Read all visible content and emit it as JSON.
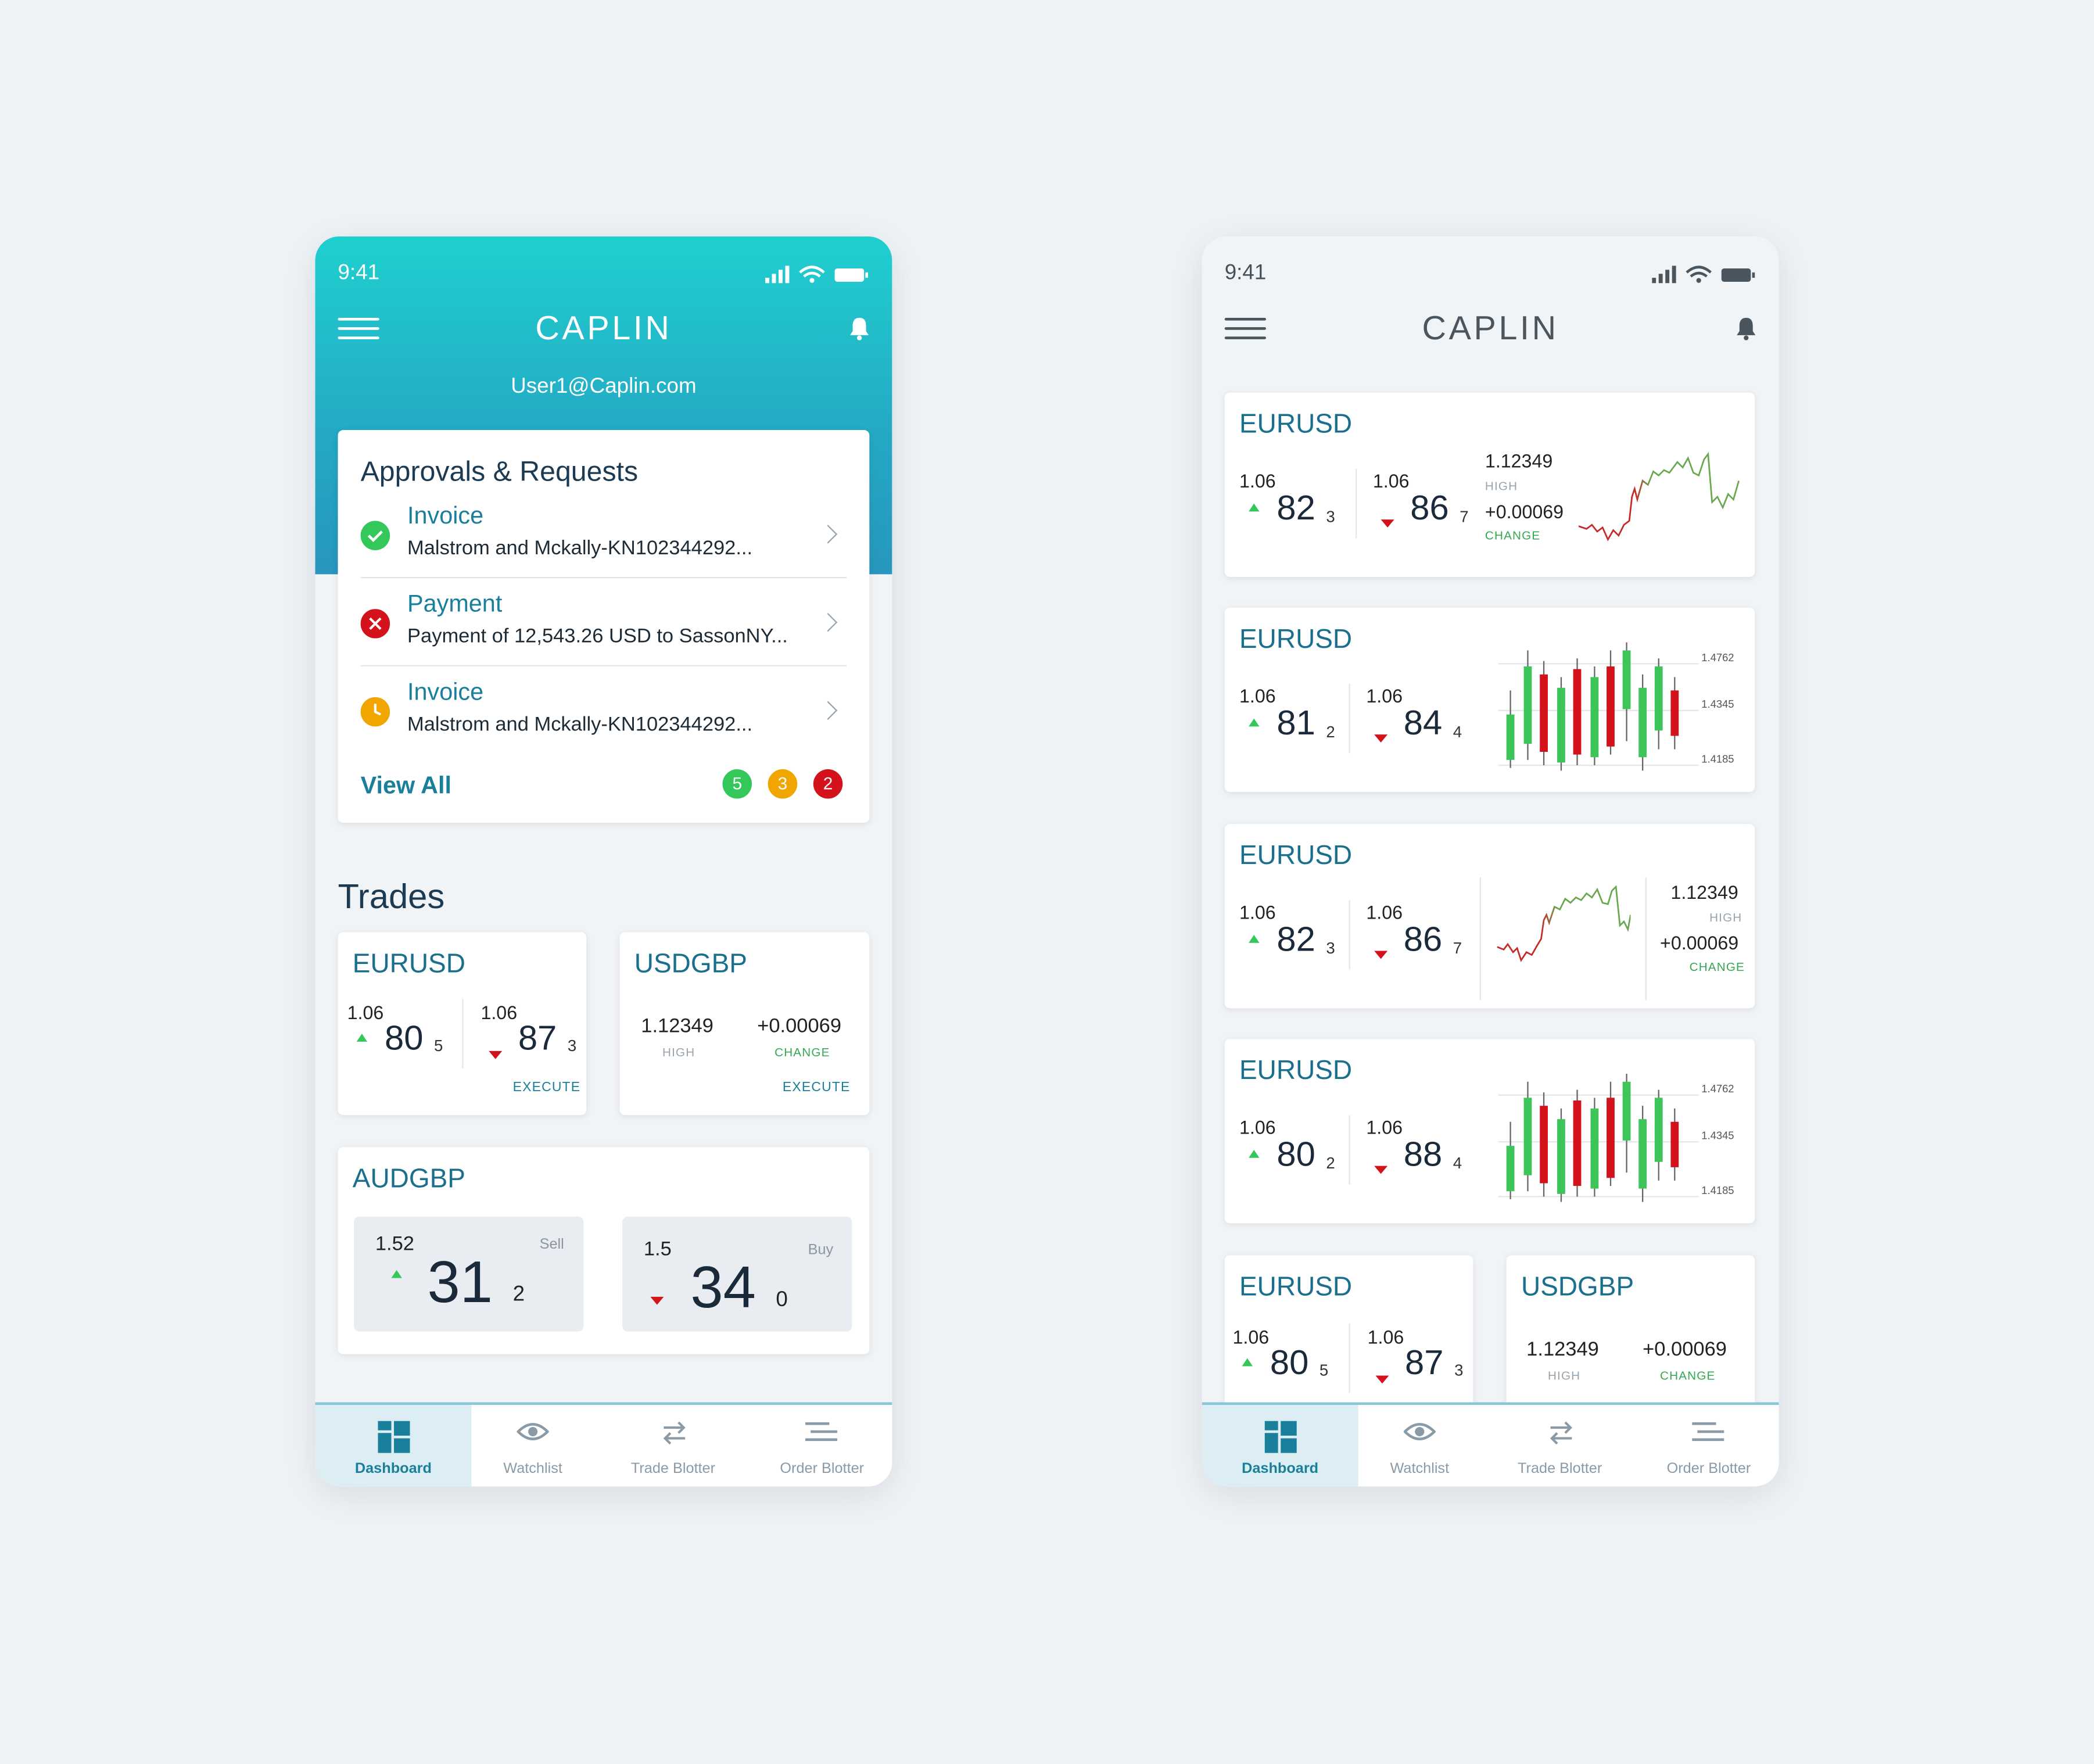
{
  "phone1": {
    "status_time": "9:41",
    "logo": "CAPLIN",
    "user_email": "User1@Caplin.com",
    "approvals": {
      "title": "Approvals & Requests",
      "items": [
        {
          "type": "Invoice",
          "desc": "Malstrom and Mckally-KN102344292...",
          "status": "approved"
        },
        {
          "type": "Payment",
          "desc": "Payment of 12,543.26 USD to SassonNY...",
          "status": "rejected"
        },
        {
          "type": "Invoice",
          "desc": "Malstrom and Mckally-KN102344292...",
          "status": "pending"
        }
      ],
      "view_all": "View All",
      "badges": [
        "5",
        "3",
        "2"
      ]
    },
    "trades_title": "Trades",
    "eurusd": {
      "pair": "EURUSD",
      "bid_small": "1.06",
      "bid_big": "80",
      "bid_pip": "5",
      "ask_small": "1.06",
      "ask_big": "87",
      "ask_pip": "3",
      "execute": "EXECUTE"
    },
    "usdgbp": {
      "pair": "USDGBP",
      "high": "1.12349",
      "high_label": "HIGH",
      "change": "+0.00069",
      "change_label": "CHANGE",
      "execute": "EXECUTE"
    },
    "audgbp": {
      "pair": "AUDGBP",
      "sell_small": "1.52",
      "sell_label": "Sell",
      "sell_big": "31",
      "sell_pip": "2",
      "buy_small": "1.5",
      "buy_label": "Buy",
      "buy_big": "34",
      "buy_pip": "0"
    }
  },
  "phone2": {
    "status_time": "9:41",
    "logo": "CAPLIN",
    "cards": [
      {
        "pair": "EURUSD",
        "bid_small": "1.06",
        "bid_big": "82",
        "bid_pip": "3",
        "ask_small": "1.06",
        "ask_big": "86",
        "ask_pip": "7",
        "high": "1.12349",
        "high_label": "HIGH",
        "change": "+0.00069",
        "change_label": "CHANGE"
      },
      {
        "pair": "EURUSD",
        "bid_small": "1.06",
        "bid_big": "81",
        "bid_pip": "2",
        "ask_small": "1.06",
        "ask_big": "84",
        "ask_pip": "4",
        "axis": [
          "1.4762",
          "1.4345",
          "1.4185"
        ]
      },
      {
        "pair": "EURUSD",
        "bid_small": "1.06",
        "bid_big": "82",
        "bid_pip": "3",
        "ask_small": "1.06",
        "ask_big": "86",
        "ask_pip": "7",
        "high": "1.12349",
        "high_label": "HIGH",
        "change": "+0.00069",
        "change_label": "CHANGE"
      },
      {
        "pair": "EURUSD",
        "bid_small": "1.06",
        "bid_big": "80",
        "bid_pip": "2",
        "ask_small": "1.06",
        "ask_big": "88",
        "ask_pip": "4",
        "axis": [
          "1.4762",
          "1.4345",
          "1.4185"
        ]
      }
    ],
    "bottom_left": {
      "pair": "EURUSD",
      "bid_small": "1.06",
      "bid_big": "80",
      "bid_pip": "5",
      "ask_small": "1.06",
      "ask_big": "87",
      "ask_pip": "3"
    },
    "bottom_right": {
      "pair": "USDGBP",
      "high": "1.12349",
      "high_label": "HIGH",
      "change": "+0.00069",
      "change_label": "CHANGE"
    }
  },
  "nav": [
    "Dashboard",
    "Watchlist",
    "Trade Blotter",
    "Order Blotter"
  ],
  "colors": {
    "accent": "#1a7f9b",
    "up": "#34c759",
    "down": "#d4121c",
    "pending": "#f0a500"
  }
}
